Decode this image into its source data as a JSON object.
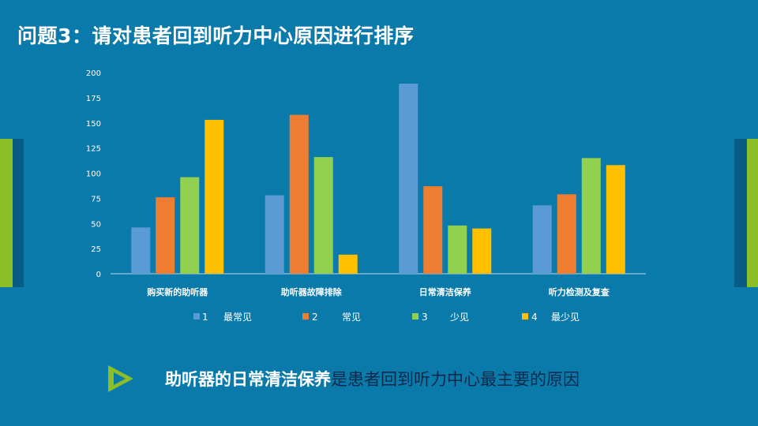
{
  "title": "问题3：请对患者回到听力中心原因进行排序",
  "conclusion": {
    "highlight": "助听器的日常清洁保养",
    "rest": "是患者回到听力中心最主要的原因"
  },
  "colors": {
    "background": "#0a7aab",
    "series1": "#5b9bd5",
    "series2": "#ed7d31",
    "series3": "#92d050",
    "series4": "#ffc000",
    "accent_green": "#8cbf26"
  },
  "icons": {
    "conclusion_marker": "play-arrow-icon"
  },
  "chart_data": {
    "type": "bar",
    "title": "",
    "xlabel": "",
    "ylabel": "",
    "ylim": [
      0,
      200
    ],
    "yticks": [
      "0",
      "25",
      "50",
      "75",
      "100",
      "125",
      "150",
      "175",
      "200"
    ],
    "categories": [
      "购买新的助听器",
      "助听器故障排除",
      "日常清洁保养",
      "听力检测及复查"
    ],
    "series": [
      {
        "name": "1　最常见",
        "key": "1",
        "label": "最常见",
        "values": [
          46,
          78,
          189,
          68
        ]
      },
      {
        "name": "2　常见",
        "key": "2",
        "label": "常见",
        "values": [
          76,
          158,
          87,
          79
        ]
      },
      {
        "name": "3　少见",
        "key": "3",
        "label": "少见",
        "values": [
          96,
          116,
          48,
          115
        ]
      },
      {
        "name": "4　最少见",
        "key": "4",
        "label": "最少见",
        "values": [
          153,
          19,
          45,
          108
        ]
      }
    ],
    "legend_position": "bottom",
    "grid": false
  }
}
